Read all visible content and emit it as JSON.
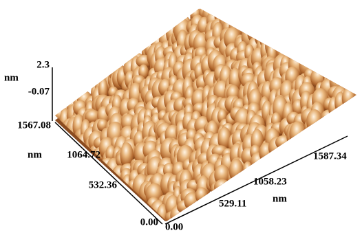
{
  "z_axis": {
    "top": "2.3",
    "unit": "nm",
    "bottom": "-0.07"
  },
  "y_axis": {
    "ticks": [
      "1567.08",
      "1064.72",
      "532.36",
      "0.00"
    ],
    "unit": "nm"
  },
  "x_axis": {
    "ticks": [
      "0.00",
      "529.11",
      "1058.23",
      "1587.34"
    ],
    "unit": "nm"
  }
}
